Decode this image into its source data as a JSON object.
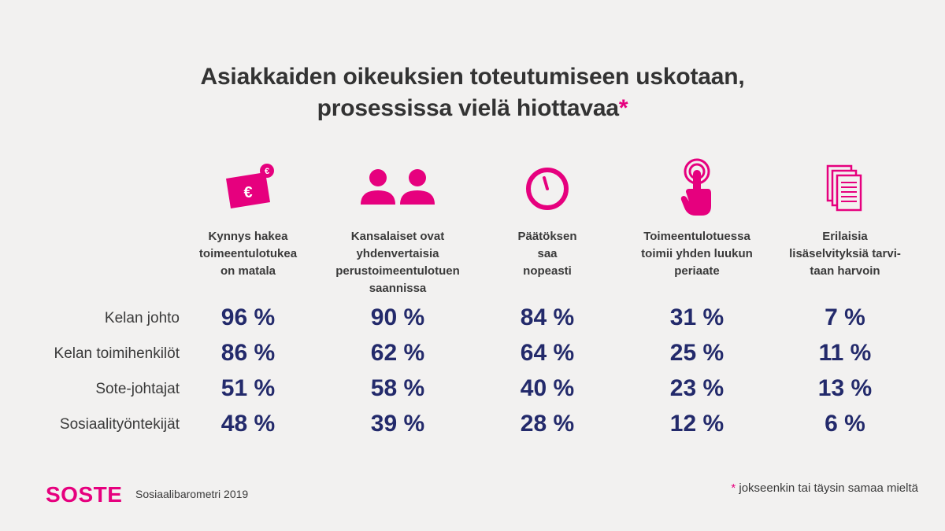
{
  "title_line1": "Asiakkaiden oikeuksien toteutumiseen uskotaan,",
  "title_line2": "prosessissa vielä hiottavaa",
  "title_star": "*",
  "columns": [
    {
      "label": "Kynnys hakea\ntoimeentulotukea\non matala",
      "icon": "money-euro-icon"
    },
    {
      "label": "Kansalaiset ovat\nyhdenvertaisia\nperustoimeentulotuen\nsaannissa",
      "icon": "people-icon"
    },
    {
      "label": "Päätöksen\nsaa\nnopeasti",
      "icon": "clock-icon"
    },
    {
      "label": "Toimeentulotuessa\ntoimii yhden luukun\nperiaate",
      "icon": "touch-hand-icon"
    },
    {
      "label": "Erilaisia\nlisäselvityksiä tarvi-\ntaan harvoin",
      "icon": "documents-icon"
    }
  ],
  "chart_data": {
    "type": "table",
    "unit": "%",
    "categories": [
      "Kynnys hakea toimeentulotukea on matala",
      "Kansalaiset ovat yhdenvertaisia perustoimeentulotuen saannissa",
      "Päätöksen saa nopeasti",
      "Toimeentulotuessa toimii yhden luukun periaate",
      "Erilaisia lisäselvityksiä tarvitaan harvoin"
    ],
    "series": [
      {
        "name": "Kelan johto",
        "values": [
          96,
          90,
          84,
          31,
          7
        ]
      },
      {
        "name": "Kelan toimihenkilöt",
        "values": [
          86,
          62,
          64,
          25,
          11
        ]
      },
      {
        "name": "Sote-johtajat",
        "values": [
          51,
          58,
          40,
          23,
          13
        ]
      },
      {
        "name": "Sosiaalityöntekijät",
        "values": [
          48,
          39,
          28,
          12,
          6
        ]
      }
    ]
  },
  "colors": {
    "accent": "#e6007e",
    "value": "#232a6b",
    "background": "#f2f1f0"
  },
  "footer": {
    "logo": "SOSTE",
    "source": "Sosiaalibarometri 2019",
    "footnote_star": "*",
    "footnote": " jokseenkin tai täysin samaa mieltä"
  }
}
